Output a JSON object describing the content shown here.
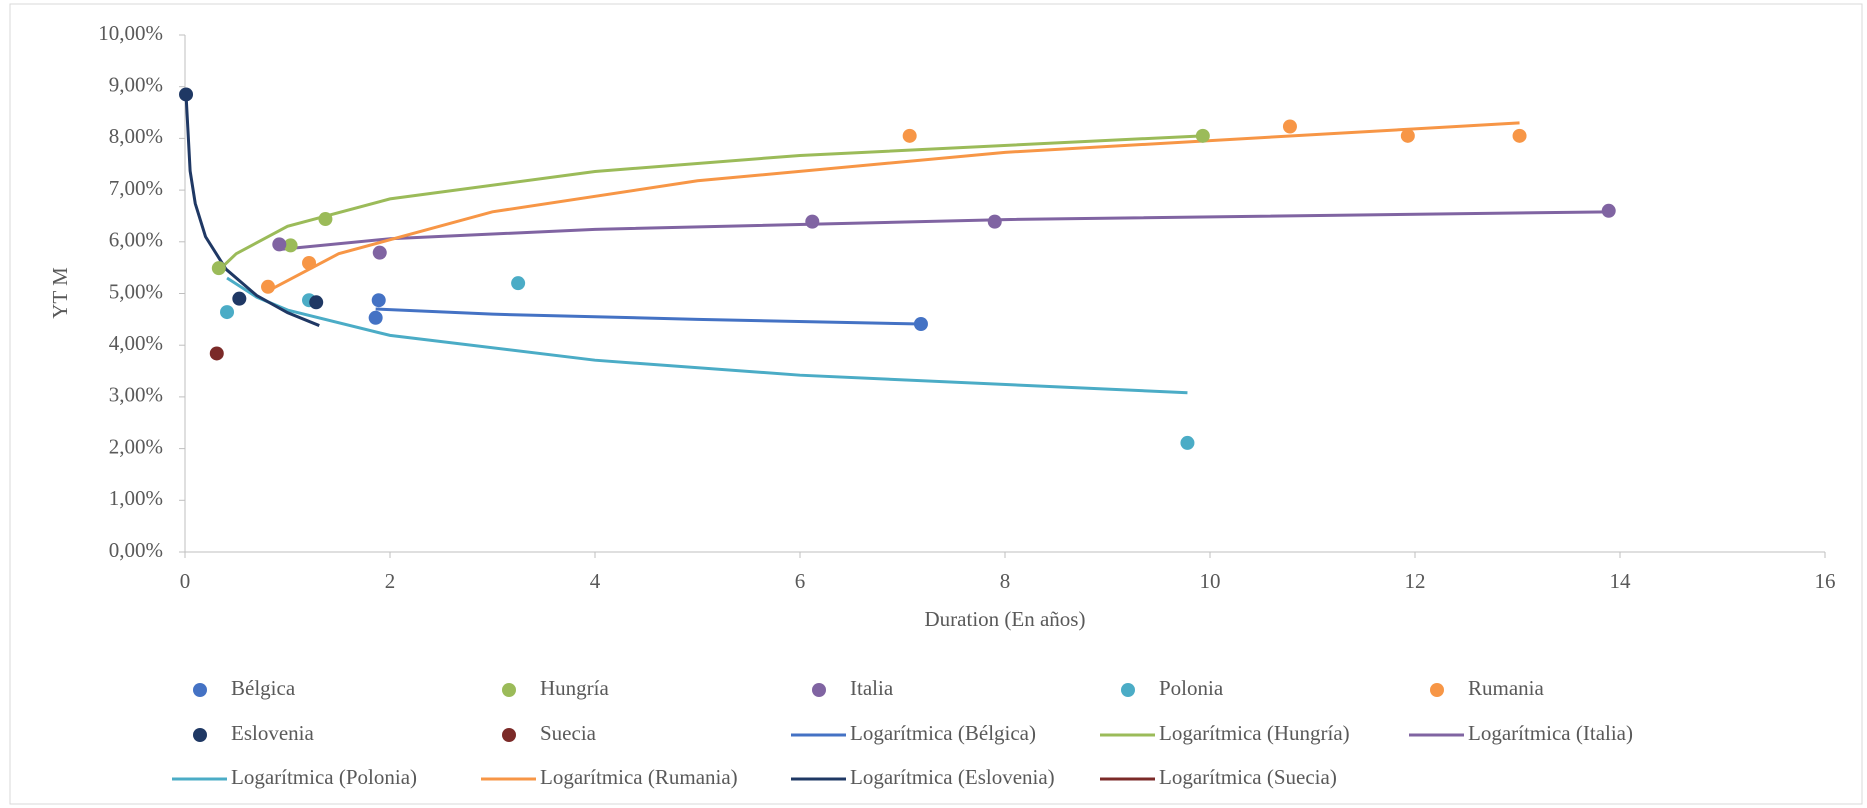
{
  "chart_data": {
    "type": "scatter",
    "xlabel": "Duration (En años)",
    "ylabel": "YT M",
    "xlim": [
      0,
      16
    ],
    "xticks": [
      0,
      2,
      4,
      6,
      8,
      10,
      12,
      14,
      16
    ],
    "ylim": [
      0,
      10
    ],
    "yticks": [
      {
        "value": 0,
        "label": "0,00%"
      },
      {
        "value": 1,
        "label": "1,00%"
      },
      {
        "value": 2,
        "label": "2,00%"
      },
      {
        "value": 3,
        "label": "3,00%"
      },
      {
        "value": 4,
        "label": "4,00%"
      },
      {
        "value": 5,
        "label": "5,00%"
      },
      {
        "value": 6,
        "label": "6,00%"
      },
      {
        "value": 7,
        "label": "7,00%"
      },
      {
        "value": 8,
        "label": "8,00%"
      },
      {
        "value": 9,
        "label": "9,00%"
      },
      {
        "value": 10,
        "label": "10,00%"
      }
    ],
    "series": [
      {
        "name": "Bélgica",
        "type": "scatter",
        "color": "#4472c4",
        "x": [
          1.89,
          1.86,
          7.18
        ],
        "values": [
          4.87,
          4.53,
          4.41
        ]
      },
      {
        "name": "Hungría",
        "type": "scatter",
        "color": "#9bbb59",
        "x": [
          0.33,
          1.03,
          1.37,
          9.93
        ],
        "values": [
          5.49,
          5.93,
          6.44,
          8.05
        ]
      },
      {
        "name": "Italia",
        "type": "scatter",
        "color": "#8064a2",
        "x": [
          0.92,
          1.9,
          6.12,
          7.9,
          13.89
        ],
        "values": [
          5.95,
          5.79,
          6.39,
          6.39,
          6.6
        ]
      },
      {
        "name": "Polonia",
        "type": "scatter",
        "color": "#4bacc6",
        "x": [
          0.41,
          1.21,
          3.25,
          9.78
        ],
        "values": [
          4.64,
          4.87,
          5.2,
          2.11
        ]
      },
      {
        "name": "Rumania",
        "type": "scatter",
        "color": "#f79646",
        "x": [
          0.81,
          1.21,
          7.07,
          10.78,
          11.93,
          13.02
        ],
        "values": [
          5.13,
          5.59,
          8.05,
          8.23,
          8.05,
          8.05
        ]
      },
      {
        "name": "Eslovenia",
        "type": "scatter",
        "color": "#1f3864",
        "x": [
          0.01,
          0.53,
          1.28
        ],
        "values": [
          8.85,
          4.9,
          4.83
        ]
      },
      {
        "name": "Suecia",
        "type": "scatter",
        "color": "#7b2a28",
        "x": [
          0.31
        ],
        "values": [
          3.84
        ]
      },
      {
        "name": "Logarítmica (Bélgica)",
        "type": "line",
        "color": "#4472c4",
        "x": [
          1.86,
          3,
          5,
          7.18
        ],
        "values": [
          4.7,
          4.6,
          4.5,
          4.41
        ]
      },
      {
        "name": "Logarítmica (Hungría)",
        "type": "line",
        "color": "#9bbb59",
        "x": [
          0.33,
          0.5,
          1,
          2,
          4,
          6,
          9.93
        ],
        "values": [
          5.45,
          5.77,
          6.3,
          6.83,
          7.36,
          7.67,
          8.05
        ]
      },
      {
        "name": "Logarítmica (Italia)",
        "type": "line",
        "color": "#8064a2",
        "x": [
          0.92,
          2,
          4,
          8,
          13.89
        ],
        "values": [
          5.85,
          6.06,
          6.24,
          6.43,
          6.58
        ]
      },
      {
        "name": "Logarítmica (Polonia)",
        "type": "line",
        "color": "#4bacc6",
        "x": [
          0.41,
          0.7,
          1,
          2,
          4,
          6,
          9.78
        ],
        "values": [
          5.3,
          4.93,
          4.68,
          4.19,
          3.71,
          3.42,
          3.08
        ]
      },
      {
        "name": "Logarítmica (Rumania)",
        "type": "line",
        "color": "#f79646",
        "x": [
          0.81,
          1.5,
          3,
          5,
          8,
          13.02
        ],
        "values": [
          5.05,
          5.77,
          6.58,
          7.18,
          7.73,
          8.3
        ]
      },
      {
        "name": "Logarítmica (Eslovenia)",
        "type": "line",
        "color": "#1f3864",
        "x": [
          0.01,
          0.05,
          0.1,
          0.2,
          0.4,
          0.7,
          1,
          1.31
        ],
        "values": [
          8.85,
          7.37,
          6.74,
          6.1,
          5.47,
          4.96,
          4.63,
          4.38
        ]
      },
      {
        "name": "Logarítmica (Suecia)",
        "type": "line",
        "color": "#7b2a28",
        "x": [],
        "values": []
      }
    ]
  }
}
